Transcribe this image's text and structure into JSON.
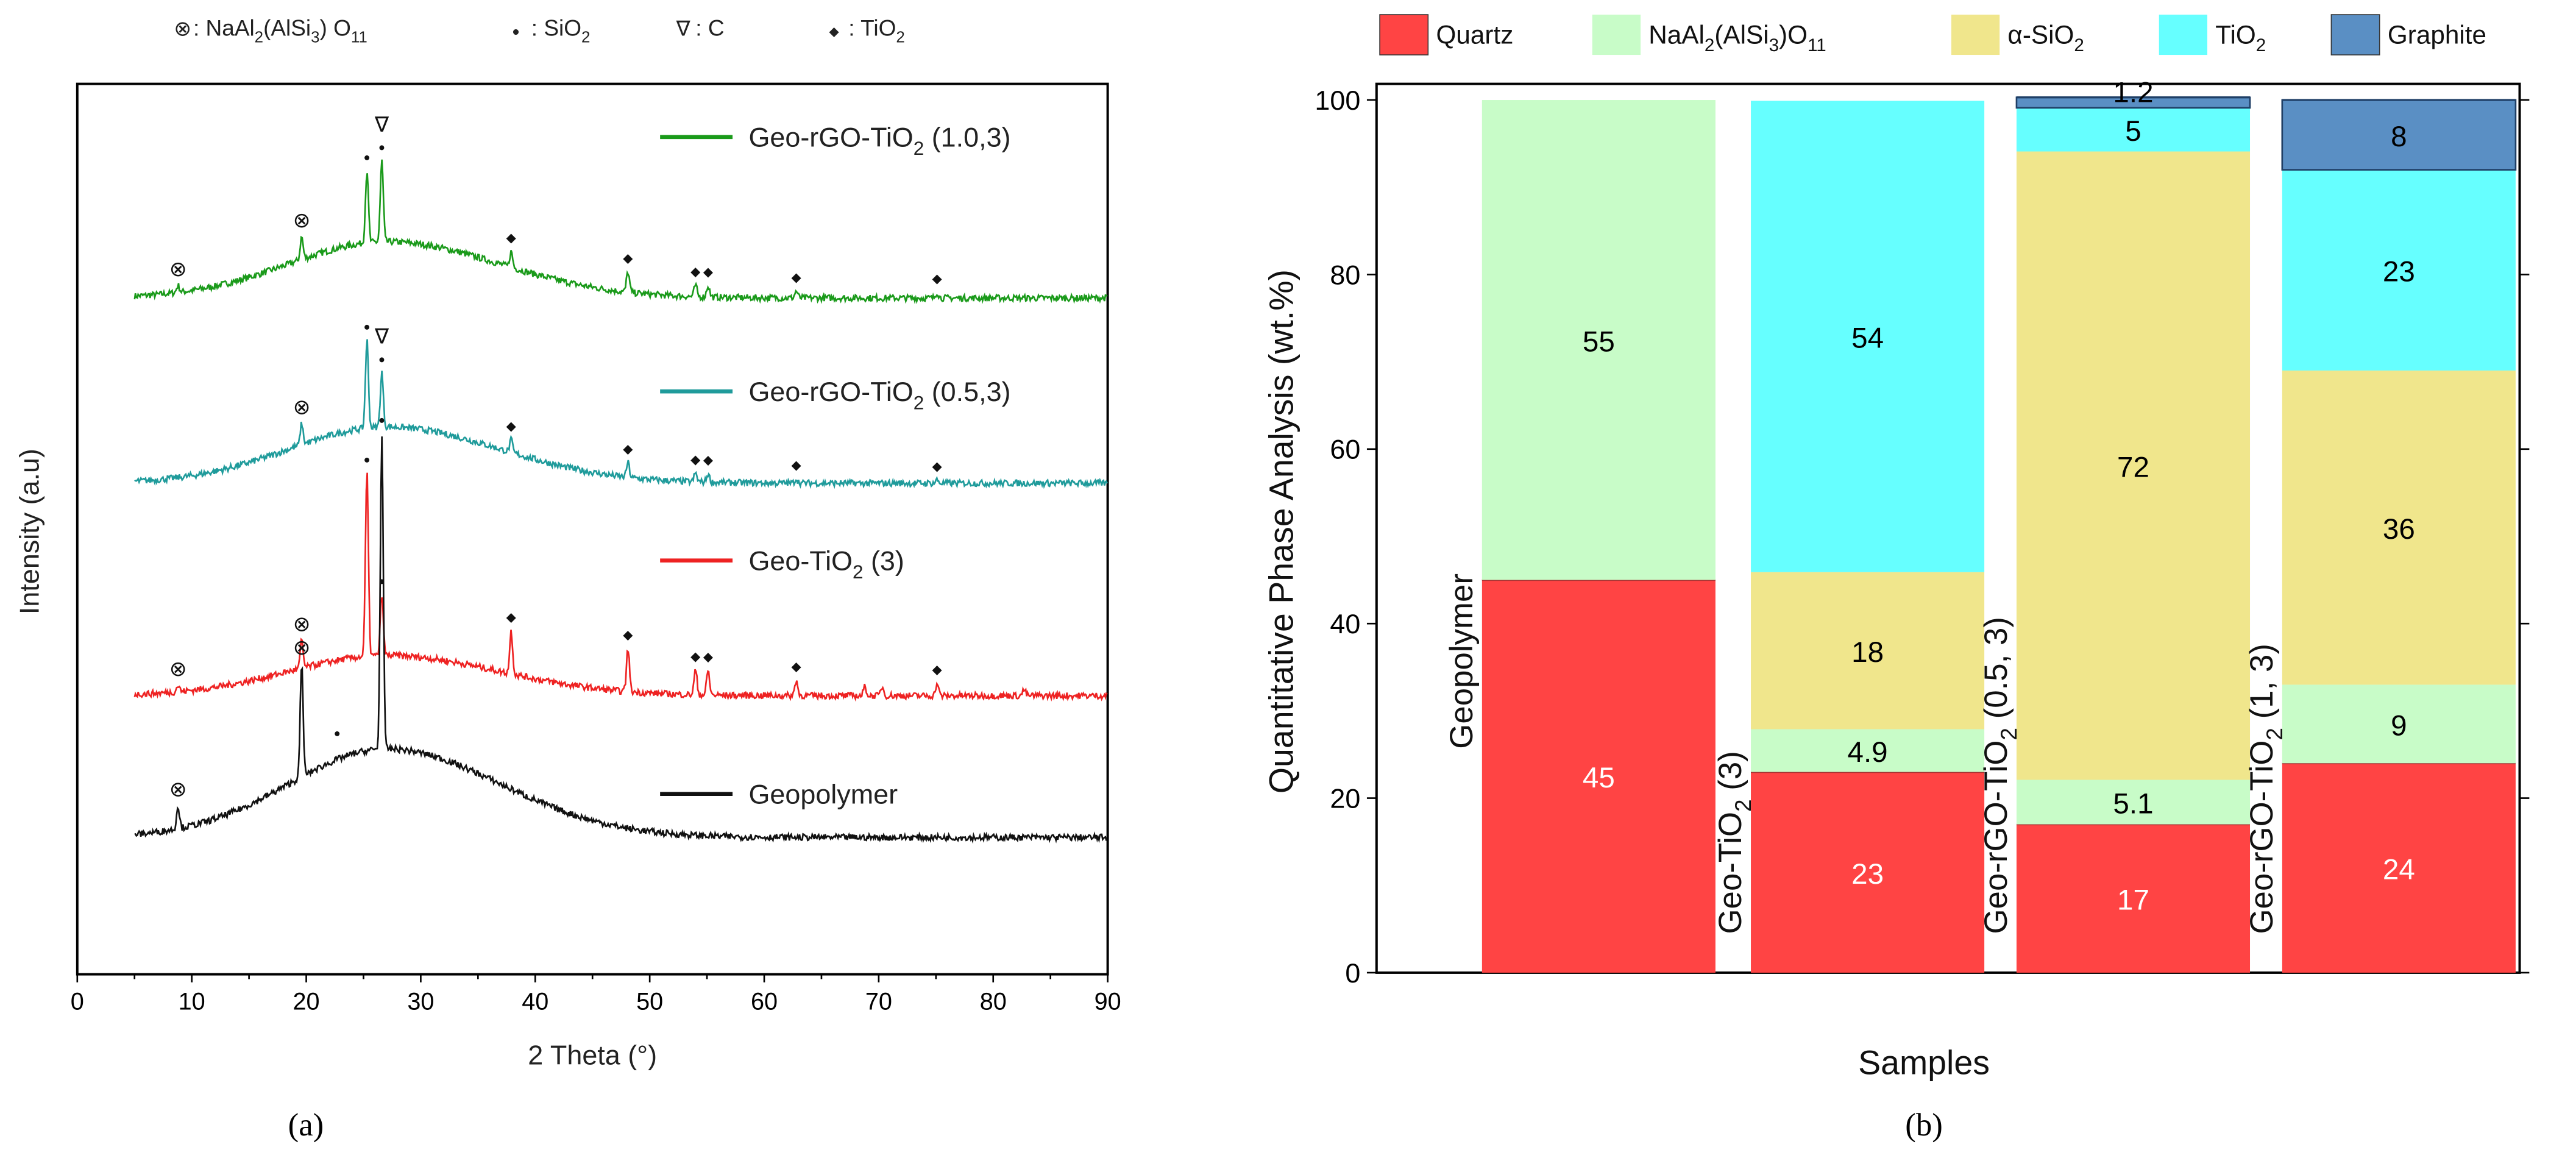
{
  "chart_data": [
    {
      "type": "line",
      "panel_caption": "(a)",
      "title": "",
      "xlabel": "2 Theta (°)",
      "ylabel": "Intensity (a.u)",
      "xlim": [
        0,
        90
      ],
      "xticks": [
        "0",
        "10",
        "20",
        "30",
        "40",
        "50",
        "60",
        "70",
        "80",
        "90"
      ],
      "phase_legend": [
        {
          "symbol": "⊗",
          "label": ": NaAl_{2}(AlSi_{3}) O_{11}"
        },
        {
          "symbol": "●",
          "label": ": SiO_{2}"
        },
        {
          "symbol": "∇",
          "label": ": C"
        },
        {
          "symbol": "◆",
          "label": ": TiO_{2}"
        }
      ],
      "series": [
        {
          "name": "Geo-rGO-TiO_{2} (1.0,3)",
          "color": "#1a9a1a",
          "peaks": [
            [
              8.8,
              0.3
            ],
            [
              19.6,
              1.0
            ],
            [
              25.3,
              3.2
            ],
            [
              26.6,
              3.6
            ],
            [
              37.9,
              0.7
            ],
            [
              48.1,
              0.9
            ],
            [
              54,
              0.5
            ],
            [
              55.1,
              0.5
            ],
            [
              62.8,
              0.3
            ],
            [
              75.1,
              0.25
            ]
          ],
          "markers": [
            [
              "⊗",
              8.8
            ],
            [
              "⊗",
              19.6
            ],
            [
              "●",
              25.3
            ],
            [
              "●",
              26.6
            ],
            [
              "∇",
              26.6
            ],
            [
              "◆",
              37.9
            ],
            [
              "◆",
              48.1
            ],
            [
              "◆",
              54
            ],
            [
              "◆",
              55.1
            ],
            [
              "◆",
              62.8
            ],
            [
              "◆",
              75.1
            ]
          ]
        },
        {
          "name": "Geo-rGO-TiO_{2} (0.5,3)",
          "color": "#1f9b9b",
          "peaks": [
            [
              19.6,
              1.0
            ],
            [
              25.3,
              4.2
            ],
            [
              26.6,
              2.6
            ],
            [
              37.9,
              0.6
            ],
            [
              48.1,
              0.7
            ],
            [
              54,
              0.4
            ],
            [
              55.1,
              0.4
            ],
            [
              62.8,
              0.2
            ],
            [
              75.1,
              0.15
            ]
          ],
          "markers": [
            [
              "⊗",
              19.6
            ],
            [
              "●",
              25.3
            ],
            [
              "●",
              26.6
            ],
            [
              "∇",
              26.6
            ],
            [
              "◆",
              37.9
            ],
            [
              "◆",
              48.1
            ],
            [
              "◆",
              54
            ],
            [
              "◆",
              55.1
            ],
            [
              "◆",
              62.8
            ],
            [
              "◆",
              75.1
            ]
          ]
        },
        {
          "name": "Geo-TiO_{2} (3)",
          "color": "#ee2222",
          "peaks": [
            [
              8.8,
              0.2
            ],
            [
              19.6,
              0.9
            ],
            [
              25.3,
              6.0
            ],
            [
              26.6,
              2.0
            ],
            [
              37.9,
              1.4
            ],
            [
              48.1,
              1.4
            ],
            [
              54,
              0.8
            ],
            [
              55.1,
              0.8
            ],
            [
              62.8,
              0.5
            ],
            [
              68.8,
              0.3
            ],
            [
              70.3,
              0.3
            ],
            [
              75.1,
              0.4
            ],
            [
              82.7,
              0.2
            ]
          ],
          "markers": [
            [
              "⊗",
              8.8
            ],
            [
              "⊗",
              19.6
            ],
            [
              "●",
              25.3
            ],
            [
              "●",
              26.6
            ],
            [
              "◆",
              37.9
            ],
            [
              "◆",
              48.1
            ],
            [
              "◆",
              54
            ],
            [
              "◆",
              55.1
            ],
            [
              "◆",
              62.8
            ],
            [
              "◆",
              75.1
            ]
          ]
        },
        {
          "name": "Geopolymer",
          "color": "#111111",
          "peaks": [
            [
              8.8,
              0.2
            ],
            [
              19.6,
              1.0
            ],
            [
              26.6,
              2.8
            ]
          ],
          "markers": [
            [
              "⊗",
              8.8
            ],
            [
              "⊗",
              19.6
            ],
            [
              "●",
              22.7
            ],
            [
              "●",
              26.6
            ]
          ]
        }
      ]
    },
    {
      "type": "bar",
      "stacked": true,
      "panel_caption": "(b)",
      "xlabel": "Samples",
      "ylabel": "Quantitative Phase Analysis (wt.%)",
      "ylim": [
        0,
        100
      ],
      "yticks": [
        "0",
        "20",
        "40",
        "60",
        "80",
        "100"
      ],
      "legend": [
        {
          "name": "Quartz",
          "color": "#ff4444",
          "label_color": "#ffffff"
        },
        {
          "name": "NaAl_{2}(AlSi_{3})O_{11}",
          "color": "#c8fcc8",
          "label_color": "#000000"
        },
        {
          "name": "α-SiO_{2}",
          "color": "#f0e68c",
          "label_color": "#000000"
        },
        {
          "name": "TiO_{2}",
          "color": "#66ffff",
          "label_color": "#000000"
        },
        {
          "name": "Graphite",
          "color": "#5a8fc4",
          "label_color": "#000000"
        }
      ],
      "categories": [
        "Geopolymer",
        "Geo-TiO_{2} (3)",
        "Geo-rGO-TiO_{2} (0.5, 3)",
        "Geo-rGO-TiO_{2} (1, 3)"
      ],
      "series": [
        {
          "name": "Quartz",
          "values": [
            45,
            23,
            17,
            24
          ],
          "labels": [
            "45",
            "23",
            "17",
            "24"
          ]
        },
        {
          "name": "NaAl2(AlSi3)O11",
          "values": [
            55,
            4.9,
            5.1,
            9
          ],
          "labels": [
            "55",
            "4.9",
            "5.1",
            "9"
          ]
        },
        {
          "name": "α-SiO2",
          "values": [
            0,
            18,
            72,
            36
          ],
          "labels": [
            "",
            "18",
            "72",
            "36"
          ]
        },
        {
          "name": "TiO2",
          "values": [
            0,
            54,
            5,
            23
          ],
          "labels": [
            "",
            "54",
            "5",
            "23"
          ]
        },
        {
          "name": "Graphite",
          "values": [
            0,
            0,
            1.2,
            8
          ],
          "labels": [
            "",
            "",
            "1.2",
            "8"
          ]
        }
      ]
    }
  ]
}
